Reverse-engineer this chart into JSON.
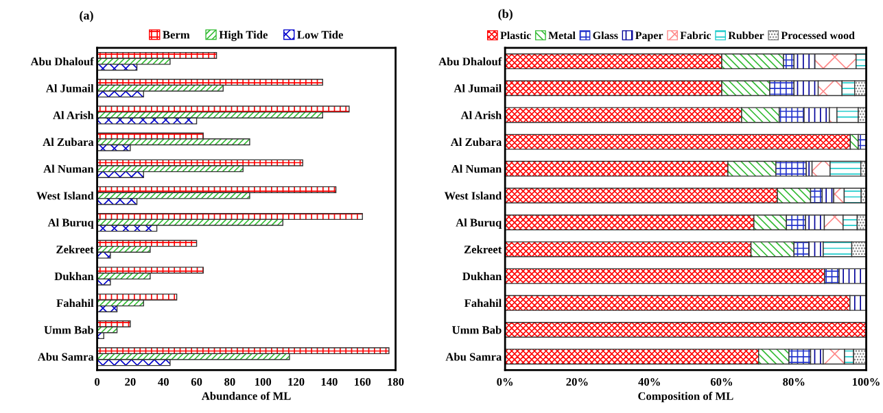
{
  "chart_data": [
    {
      "type": "bar",
      "title": "(a)",
      "orientation": "horizontal",
      "xlabel": "Abundance of ML",
      "legend": "top",
      "categories": [
        "Abu Dhalouf",
        "Al Jumail",
        "Al Arish",
        "Al Zubara",
        "Al Numan",
        "West Island",
        "Al Buruq",
        "Zekreet",
        "Dukhan",
        "Fahahil",
        "Umm Bab",
        "Abu Samra"
      ],
      "xlim": [
        0,
        180
      ],
      "xticks": [
        0,
        20,
        40,
        60,
        80,
        100,
        120,
        140,
        160,
        180
      ],
      "series": [
        {
          "name": "Berm",
          "color": "#ff0000",
          "values": [
            72,
            136,
            152,
            64,
            124,
            144,
            160,
            60,
            64,
            48,
            20,
            176
          ]
        },
        {
          "name": "High Tide",
          "color": "#33bb33",
          "values": [
            44,
            76,
            136,
            92,
            88,
            92,
            112,
            32,
            32,
            28,
            12,
            116
          ]
        },
        {
          "name": "Low Tide",
          "color": "#0000cc",
          "values": [
            24,
            28,
            60,
            20,
            28,
            24,
            36,
            8,
            8,
            12,
            4,
            44
          ]
        }
      ]
    },
    {
      "type": "bar",
      "title": "(b)",
      "orientation": "horizontal",
      "stacked": true,
      "xlabel": "Composition of ML",
      "legend": "top",
      "categories": [
        "Abu Dhalouf",
        "Al Jumail",
        "Al Arish",
        "Al Zubara",
        "Al Numan",
        "West Island",
        "Al Buruq",
        "Zekreet",
        "Dukhan",
        "Fahahil",
        "Umm Bab",
        "Abu Samra"
      ],
      "xlim": [
        0,
        100
      ],
      "xticks": [
        {
          "value": 0,
          "label": "0%"
        },
        {
          "value": 20,
          "label": "20%"
        },
        {
          "value": 40,
          "label": "40%"
        },
        {
          "value": 60,
          "label": "60%"
        },
        {
          "value": 80,
          "label": "80%"
        },
        {
          "value": 100,
          "label": "100%"
        }
      ],
      "series": [
        {
          "name": "Plastic",
          "color": "#ff0000",
          "values": [
            60,
            60,
            65.5,
            95.6,
            61.7,
            75.4,
            68.9,
            68.1,
            88.5,
            95.5,
            100,
            70.2
          ]
        },
        {
          "name": "Metal",
          "color": "#33bb33",
          "values": [
            17.1,
            13.3,
            10.4,
            2.2,
            13.3,
            9.2,
            9.0,
            11.9,
            0,
            0,
            0,
            8.4
          ]
        },
        {
          "name": "Glass",
          "color": "#2233cc",
          "values": [
            2.9,
            6.7,
            6.9,
            2.2,
            8.4,
            3.2,
            5.3,
            4.1,
            4.0,
            0,
            0,
            6.0
          ]
        },
        {
          "name": "Paper",
          "color": "#000099",
          "values": [
            5.8,
            6.7,
            7.0,
            0,
            1.6,
            3.2,
            5.2,
            4.0,
            7.5,
            4.5,
            0,
            3.5
          ]
        },
        {
          "name": "Fabric",
          "color": "#ff8888",
          "values": [
            11.4,
            6.6,
            2.1,
            0,
            5.0,
            2.9,
            5.2,
            0,
            0,
            0,
            0,
            5.9
          ]
        },
        {
          "name": "Rubber",
          "color": "#22cccc",
          "values": [
            2.8,
            3.5,
            5.9,
            0,
            8.5,
            4.7,
            3.9,
            7.9,
            0,
            0,
            0,
            2.5
          ]
        },
        {
          "name": "Processed wood",
          "color": "#777777",
          "values": [
            0,
            3.2,
            2.2,
            0,
            1.5,
            1.4,
            2.5,
            4.0,
            0,
            0,
            0,
            3.5
          ]
        }
      ]
    }
  ]
}
